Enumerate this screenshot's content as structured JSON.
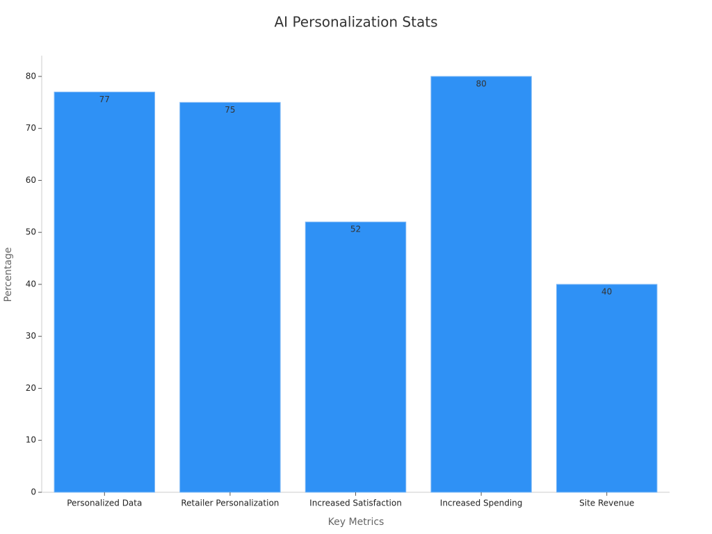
{
  "chart_data": {
    "type": "bar",
    "title": "AI Personalization Stats",
    "x_label": "Key Metrics",
    "y_label": "Percentage",
    "categories": [
      "Personalized Data",
      "Retailer Personalization",
      "Increased Satisfaction",
      "Increased Spending",
      "Site Revenue"
    ],
    "values": [
      77,
      75,
      52,
      80,
      40
    ],
    "color": "#2f91f5",
    "ylim": [
      0,
      84
    ],
    "yticks": [
      0,
      10,
      20,
      30,
      40,
      50,
      60,
      70,
      80
    ],
    "grid": false
  }
}
